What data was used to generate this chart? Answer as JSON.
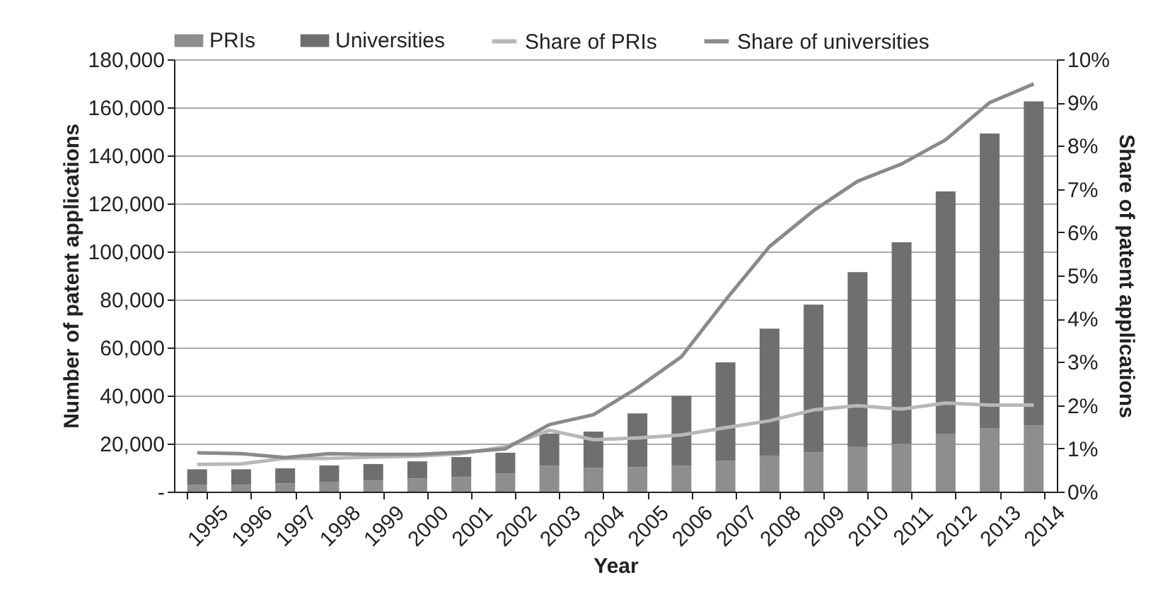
{
  "chart_data": {
    "type": "bar",
    "stacked": true,
    "xlabel": "Year",
    "ylabel": "Number of patent applications",
    "y2label": "Share of patent applications",
    "categories": [
      "1995",
      "1996",
      "1997",
      "1998",
      "1999",
      "2000",
      "2001",
      "2002",
      "2003",
      "2004",
      "2005",
      "2006",
      "2007",
      "2008",
      "2009",
      "2010",
      "2011",
      "2012",
      "2013",
      "2014"
    ],
    "series": [
      {
        "name": "PRIs",
        "color": "#8e8e90",
        "values": [
          2900,
          2900,
          3400,
          4100,
          4600,
          5500,
          6100,
          7500,
          10700,
          9900,
          10200,
          10700,
          12900,
          14900,
          16400,
          18800,
          19900,
          24100,
          26300,
          27500
        ]
      },
      {
        "name": "Universities",
        "color": "#6f6f71",
        "values": [
          6400,
          6400,
          6300,
          6800,
          6900,
          7100,
          8300,
          8700,
          13500,
          15100,
          22400,
          29200,
          40900,
          53000,
          61500,
          72600,
          83900,
          100900,
          122800,
          135000
        ]
      },
      {
        "name": "Share of PRIs",
        "type": "line",
        "axis": "y2",
        "color": "#b8b8b8",
        "values": [
          0.63,
          0.64,
          0.77,
          0.77,
          0.8,
          0.82,
          0.88,
          1.04,
          1.42,
          1.2,
          1.24,
          1.31,
          1.48,
          1.64,
          1.89,
          1.99,
          1.91,
          2.05,
          2.0,
          2.0
        ]
      },
      {
        "name": "Share of universities",
        "type": "line",
        "axis": "y2",
        "color": "#8a8a8a",
        "values": [
          0.9,
          0.88,
          0.79,
          0.88,
          0.86,
          0.86,
          0.91,
          0.99,
          1.55,
          1.78,
          2.4,
          3.12,
          4.43,
          5.67,
          6.5,
          7.18,
          7.58,
          8.14,
          9.0,
          9.43
        ]
      }
    ],
    "ylim": [
      0,
      180000
    ],
    "yticks": [
      {
        "value": 0,
        "label": "-"
      },
      {
        "value": 20000,
        "label": "20,000"
      },
      {
        "value": 40000,
        "label": "40,000"
      },
      {
        "value": 60000,
        "label": "60,000"
      },
      {
        "value": 80000,
        "label": "80,000"
      },
      {
        "value": 100000,
        "label": "100,000"
      },
      {
        "value": 120000,
        "label": "120,000"
      },
      {
        "value": 140000,
        "label": "140,000"
      },
      {
        "value": 160000,
        "label": "160,000"
      },
      {
        "value": 180000,
        "label": "180,000"
      }
    ],
    "y2lim": [
      0,
      10
    ],
    "y2ticks": [
      {
        "value": 0,
        "label": "0%"
      },
      {
        "value": 1,
        "label": "1%"
      },
      {
        "value": 2,
        "label": "2%"
      },
      {
        "value": 3,
        "label": "3%"
      },
      {
        "value": 4,
        "label": "4%"
      },
      {
        "value": 5,
        "label": "5%"
      },
      {
        "value": 6,
        "label": "6%"
      },
      {
        "value": 7,
        "label": "7%"
      },
      {
        "value": 8,
        "label": "8%"
      },
      {
        "value": 9,
        "label": "9%"
      },
      {
        "value": 10,
        "label": "10%"
      }
    ],
    "grid": "y",
    "legend": "top",
    "line_style": "solid"
  }
}
